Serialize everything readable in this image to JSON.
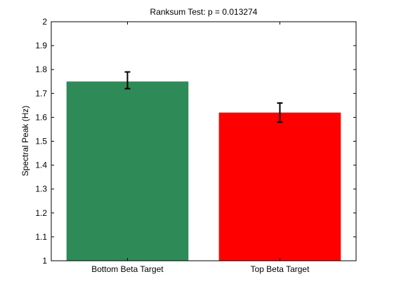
{
  "chart_data": {
    "type": "bar",
    "title": "Ranksum Test: p = 0.013274",
    "xlabel": "",
    "ylabel": "Spectral Peak (Hz)",
    "ylim": [
      1,
      2
    ],
    "yticks": [
      "1",
      "1.1",
      "1.2",
      "1.3",
      "1.4",
      "1.5",
      "1.6",
      "1.7",
      "1.8",
      "1.9",
      "2"
    ],
    "categories": [
      "Bottom Beta Target",
      "Top Beta Target"
    ],
    "values": [
      1.75,
      1.62
    ],
    "error_low": [
      1.72,
      1.58
    ],
    "error_high": [
      1.79,
      1.66
    ],
    "colors": [
      "#2e8b57",
      "#ff0000"
    ],
    "grid": false,
    "legend": "none"
  }
}
